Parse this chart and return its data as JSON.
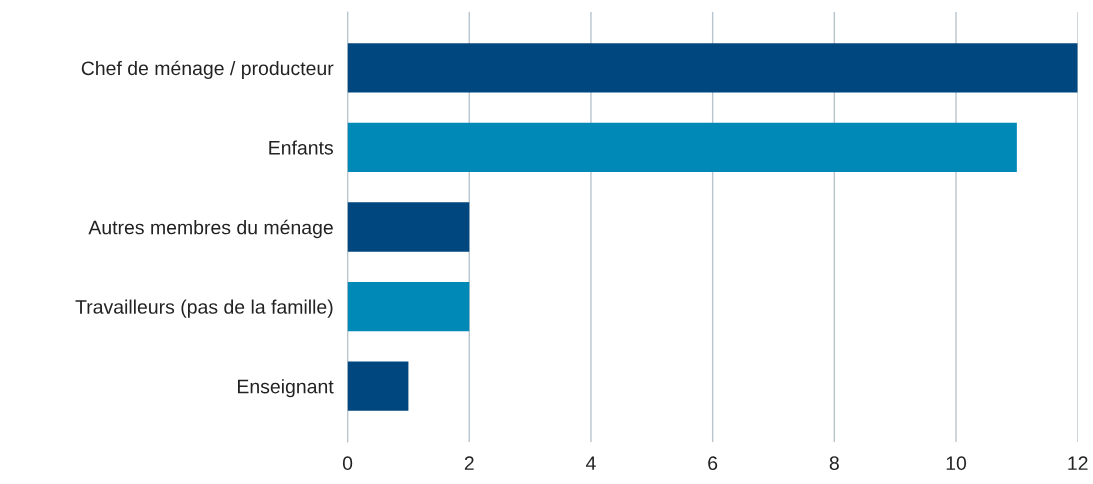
{
  "chart_data": {
    "type": "bar",
    "orientation": "horizontal",
    "categories": [
      "Chef de ménage / producteur",
      "Enfants",
      "Autres membres du ménage",
      "Travailleurs (pas de la famille)",
      "Enseignant"
    ],
    "values": [
      12,
      11,
      2,
      2,
      1
    ],
    "colors": [
      "#00467f",
      "#0089b7",
      "#00467f",
      "#0089b7",
      "#00467f"
    ],
    "xlim": [
      0,
      12
    ],
    "xticks": [
      0,
      2,
      4,
      6,
      8,
      10,
      12
    ],
    "grid": "x",
    "legend": false
  }
}
